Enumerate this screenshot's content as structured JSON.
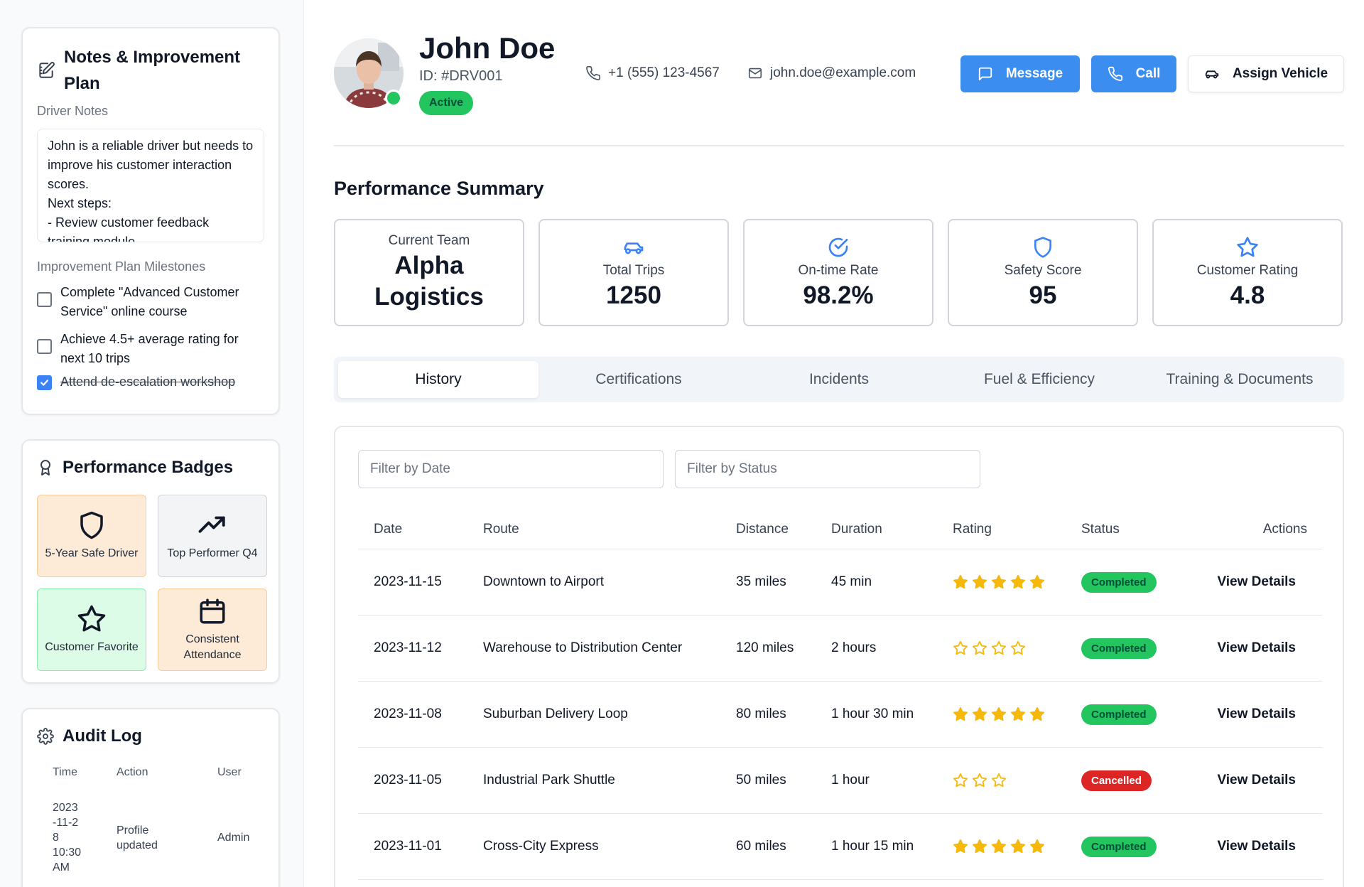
{
  "notes": {
    "title": "Notes & Improvement Plan",
    "driver_notes_label": "Driver Notes",
    "driver_notes_text": "John is a reliable driver but needs to improve his customer interaction scores.\nNext steps:\n- Review customer feedback\ntraining module",
    "milestones_label": "Improvement Plan Milestones",
    "milestones": [
      {
        "label": "Complete \"Advanced Customer Service\" online course",
        "checked": false
      },
      {
        "label": "Achieve 4.5+ average rating for next 10 trips",
        "checked": false
      },
      {
        "label": "Attend de-escalation workshop",
        "checked": true
      }
    ]
  },
  "badges": {
    "title": "Performance Badges",
    "items": [
      {
        "label": "5-Year Safe Driver",
        "icon": "shield-icon",
        "color": "orange"
      },
      {
        "label": "Top Performer Q4",
        "icon": "trending-up-icon",
        "color": "gray"
      },
      {
        "label": "Customer Favorite",
        "icon": "star-icon",
        "color": "green"
      },
      {
        "label": "Consistent Attendance",
        "icon": "calendar-icon",
        "color": "orange"
      }
    ]
  },
  "audit": {
    "title": "Audit Log",
    "headers": {
      "time": "Time",
      "action": "Action",
      "user": "User"
    },
    "rows": [
      {
        "time": "2023\n-11-2\n8\n10:30\nAM",
        "action": "Profile\nupdated",
        "user": "Admin"
      }
    ]
  },
  "driver": {
    "name": "John Doe",
    "id": "ID: #DRV001",
    "status": "Active",
    "phone": "+1 (555) 123-4567",
    "email": "john.doe@example.com"
  },
  "actions": {
    "message": "Message",
    "call": "Call",
    "assign": "Assign Vehicle"
  },
  "performance": {
    "title": "Performance Summary",
    "team_label": "Current Team",
    "team_value": "Alpha Logistics",
    "stats": [
      {
        "label": "Total Trips",
        "value": "1250",
        "icon": "car-icon"
      },
      {
        "label": "On-time Rate",
        "value": "98.2%",
        "icon": "check-circle-icon"
      },
      {
        "label": "Safety Score",
        "value": "95",
        "icon": "shield-icon"
      },
      {
        "label": "Customer Rating",
        "value": "4.8",
        "icon": "star-icon"
      }
    ]
  },
  "tabs": [
    {
      "label": "History",
      "active": true
    },
    {
      "label": "Certifications",
      "active": false
    },
    {
      "label": "Incidents",
      "active": false
    },
    {
      "label": "Fuel & Efficiency",
      "active": false
    },
    {
      "label": "Training & Documents",
      "active": false
    }
  ],
  "history": {
    "filter_date_placeholder": "Filter by Date",
    "filter_status_placeholder": "Filter by Status",
    "columns": {
      "date": "Date",
      "route": "Route",
      "distance": "Distance",
      "duration": "Duration",
      "rating": "Rating",
      "status": "Status",
      "actions": "Actions"
    },
    "rows": [
      {
        "date": "2023-11-15",
        "route": "Downtown to Airport",
        "distance": "35 miles",
        "duration": "45 min",
        "rating": 5,
        "rating_filled": true,
        "status": "Completed",
        "action": "View Details"
      },
      {
        "date": "2023-11-12",
        "route": "Warehouse to Distribution Center",
        "distance": "120 miles",
        "duration": "2 hours",
        "rating": 4,
        "rating_filled": false,
        "status": "Completed",
        "action": "View Details"
      },
      {
        "date": "2023-11-08",
        "route": "Suburban Delivery Loop",
        "distance": "80 miles",
        "duration": "1 hour 30 min",
        "rating": 5,
        "rating_filled": true,
        "status": "Completed",
        "action": "View Details"
      },
      {
        "date": "2023-11-05",
        "route": "Industrial Park Shuttle",
        "distance": "50 miles",
        "duration": "1 hour",
        "rating": 3,
        "rating_filled": false,
        "status": "Cancelled",
        "action": "View Details"
      },
      {
        "date": "2023-11-01",
        "route": "Cross-City Express",
        "distance": "60 miles",
        "duration": "1 hour 15 min",
        "rating": 5,
        "rating_filled": true,
        "status": "Completed",
        "action": "View Details"
      }
    ]
  },
  "colors": {
    "primary": "#3b8df0",
    "success": "#22c55e",
    "danger": "#dc2626",
    "star": "#f5b80b"
  }
}
